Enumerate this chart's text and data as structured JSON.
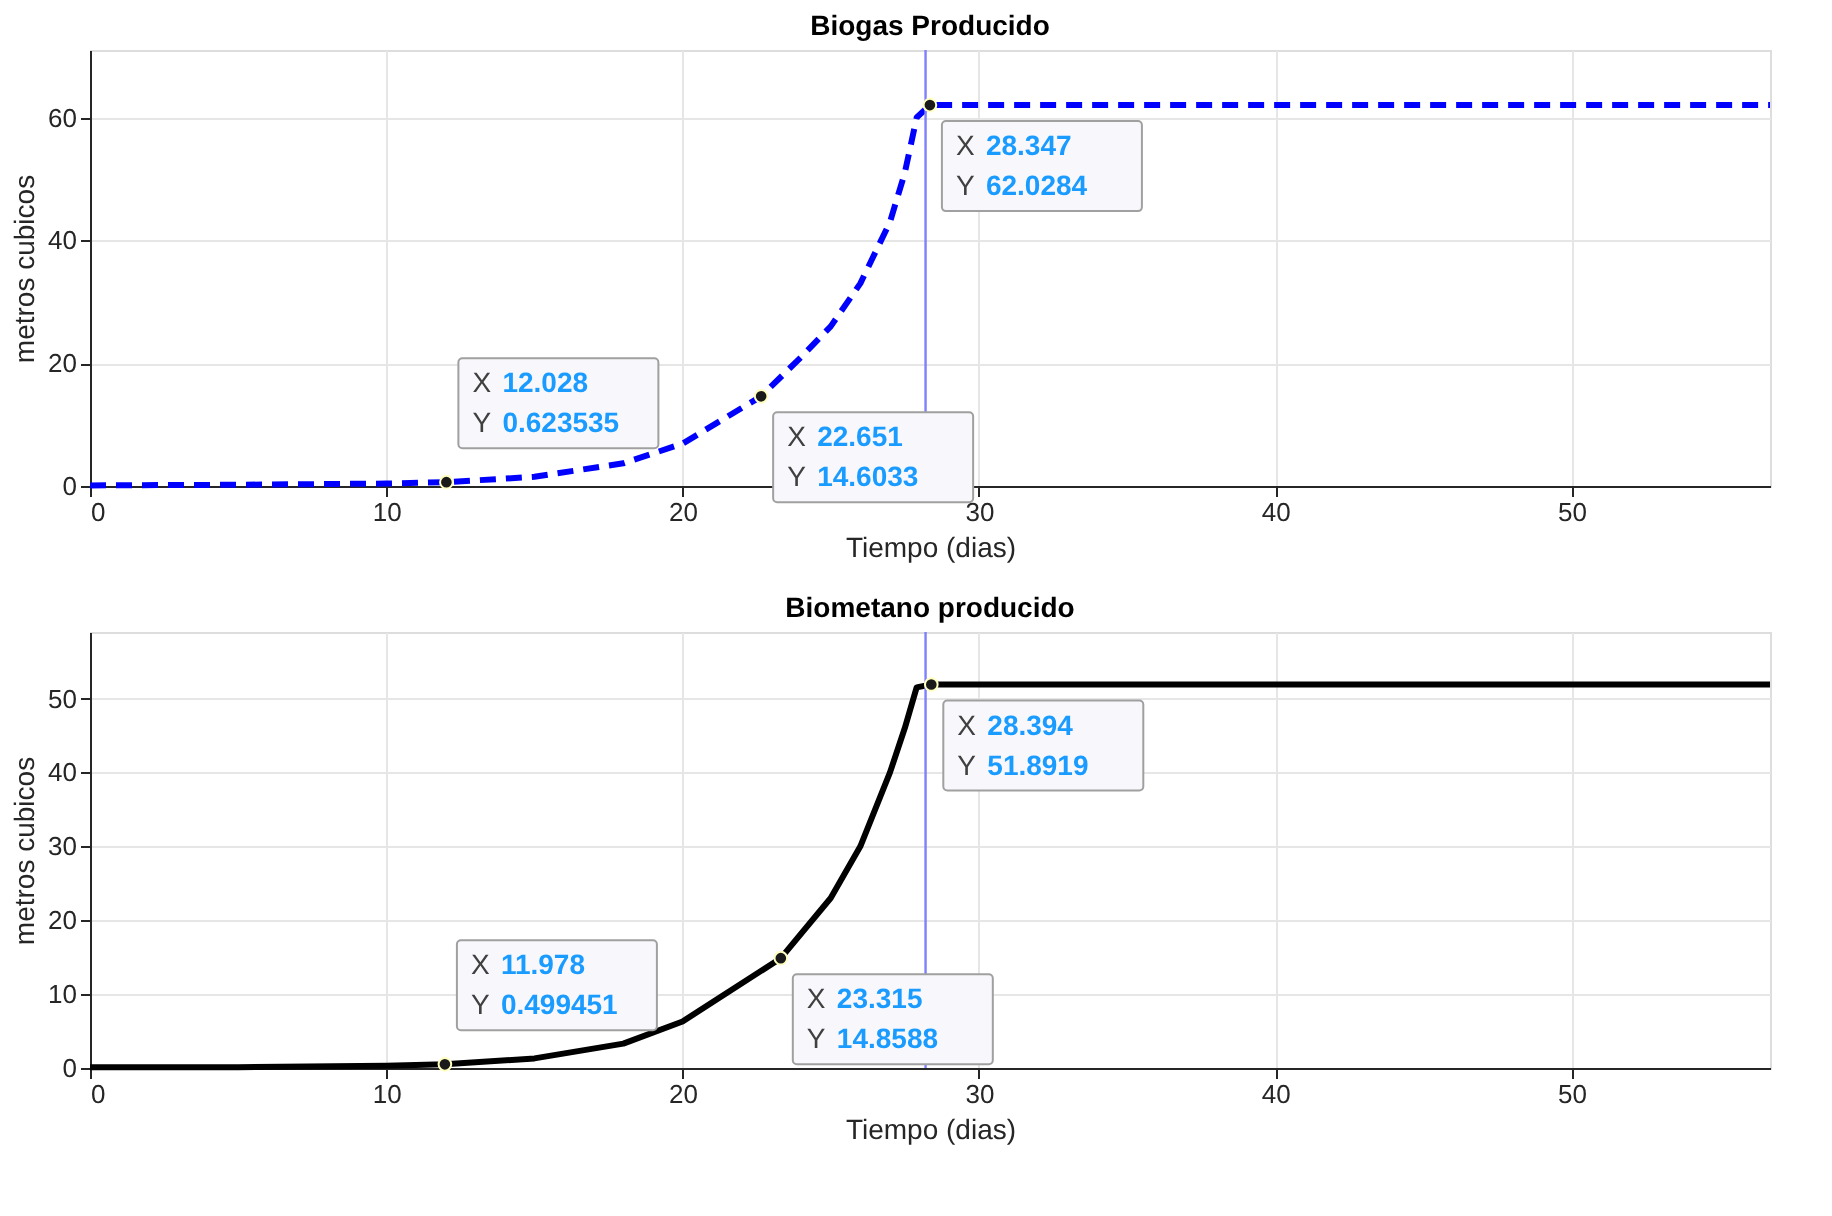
{
  "chart_data": [
    {
      "type": "line",
      "title": "Biogas Producido",
      "xlabel": "Tiempo (dias)",
      "ylabel": "metros cubicos",
      "x": [
        0,
        5,
        10,
        12.028,
        15,
        18,
        20,
        22.651,
        24,
        25,
        26,
        27,
        27.5,
        27.9,
        28.347,
        56.7
      ],
      "series": [
        {
          "color": "#0000ff",
          "line_style": "dashed",
          "values": [
            0.1,
            0.2,
            0.4,
            0.623535,
            1.5,
            3.7,
            6.9,
            14.6033,
            21,
            26,
            33,
            43,
            51,
            60,
            62.0284,
            62.0284
          ]
        }
      ],
      "xlim": [
        0,
        56.7
      ],
      "xticks": [
        0,
        10,
        20,
        30,
        40,
        50
      ],
      "ylim": [
        0,
        71
      ],
      "yticks": [
        0,
        20,
        40,
        60
      ],
      "grid": true,
      "marker": "none",
      "ref_lines": [
        {
          "axis": "x",
          "value": 28.2,
          "color": "#7f7fff"
        }
      ],
      "annotations": [
        {
          "text": "X 12.028\nY 0.623535",
          "x": 12.028,
          "y": 0.623535
        },
        {
          "text": "X 22.651\nY 14.6033",
          "x": 22.651,
          "y": 14.6033
        },
        {
          "text": "X 28.347\nY 62.0284",
          "x": 28.347,
          "y": 62.0284
        }
      ]
    },
    {
      "type": "line",
      "title": "Biometano producido",
      "xlabel": "Tiempo (dias)",
      "ylabel": "metros cubicos",
      "x": [
        0,
        5,
        10,
        11.978,
        15,
        18,
        20,
        23.315,
        25,
        26,
        27,
        27.5,
        27.9,
        28.394,
        56.7
      ],
      "series": [
        {
          "color": "#000000",
          "line_style": "solid",
          "values": [
            0.1,
            0.1,
            0.3,
            0.499451,
            1.3,
            3.3,
            6.3,
            14.8588,
            23,
            30,
            40,
            46,
            51.5,
            51.8919,
            51.8919
          ]
        }
      ],
      "xlim": [
        0,
        56.7
      ],
      "xticks": [
        0,
        10,
        20,
        30,
        40,
        50
      ],
      "ylim": [
        0,
        59
      ],
      "yticks": [
        0,
        10,
        20,
        30,
        40,
        50
      ],
      "grid": true,
      "marker": "none",
      "ref_lines": [
        {
          "axis": "x",
          "value": 28.2,
          "color": "#7f7fff"
        }
      ],
      "annotations": [
        {
          "text": "X 11.978\nY 0.499451",
          "x": 11.978,
          "y": 0.499451
        },
        {
          "text": "X 23.315\nY 14.8588",
          "x": 23.315,
          "y": 14.8588
        },
        {
          "text": "X 28.394\nY 51.8919",
          "x": 28.394,
          "y": 51.8919
        }
      ]
    }
  ]
}
